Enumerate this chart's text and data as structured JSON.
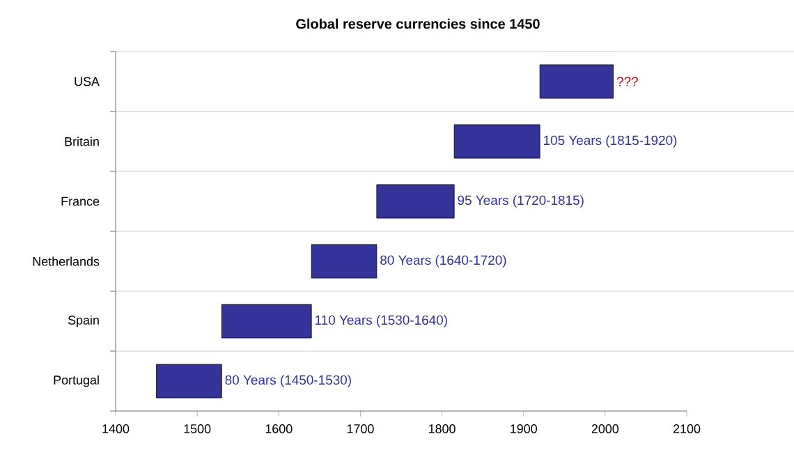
{
  "chart_data": {
    "type": "bar",
    "orientation": "horizontal",
    "title": "Global reserve currencies since 1450",
    "categories": [
      "USA",
      "Britain",
      "France",
      "Netherlands",
      "Spain",
      "Portugal"
    ],
    "base": [
      1920,
      1815,
      1720,
      1640,
      1530,
      1450
    ],
    "values": [
      90,
      105,
      95,
      80,
      110,
      80
    ],
    "color": "#333399",
    "value_labels": [
      null,
      "105 Years (1815-1920)",
      "95 Years (1720-1815)",
      "80 Years (1640-1720)",
      "110 Years (1530-1640)",
      "80 Years (1450-1530)"
    ],
    "annotations": [
      "???"
    ],
    "xlim": [
      1400,
      2100
    ],
    "xticks": [
      1400,
      1500,
      1600,
      1700,
      1800,
      1900,
      2000,
      2100
    ],
    "grid": "y"
  }
}
